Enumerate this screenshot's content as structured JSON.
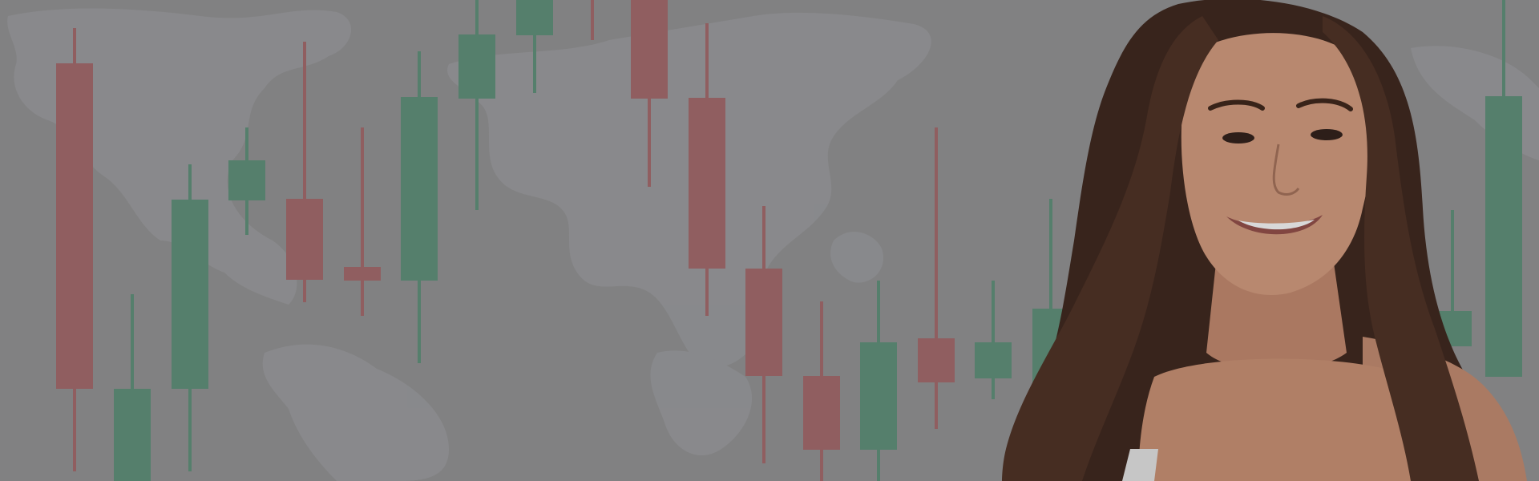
{
  "hero": {
    "colors": {
      "background": "#8c8c8d",
      "map_land": "#96979a",
      "candle_up": "#5b8a74",
      "candle_down": "#9c6567",
      "hair": "#3a241b",
      "skin": "#c58f74"
    },
    "candles": [
      {
        "dir": "down"
      },
      {
        "dir": "up"
      },
      {
        "dir": "up"
      },
      {
        "dir": "up"
      },
      {
        "dir": "down"
      },
      {
        "dir": "down"
      },
      {
        "dir": "up"
      },
      {
        "dir": "up"
      },
      {
        "dir": "up"
      },
      {
        "dir": "down"
      },
      {
        "dir": "down"
      },
      {
        "dir": "down"
      },
      {
        "dir": "down"
      },
      {
        "dir": "down"
      },
      {
        "dir": "up"
      },
      {
        "dir": "down"
      },
      {
        "dir": "up"
      },
      {
        "dir": "up"
      },
      {
        "dir": "up"
      },
      {
        "dir": "up"
      },
      {
        "dir": "up"
      }
    ],
    "image_subject": "woman-portrait"
  }
}
